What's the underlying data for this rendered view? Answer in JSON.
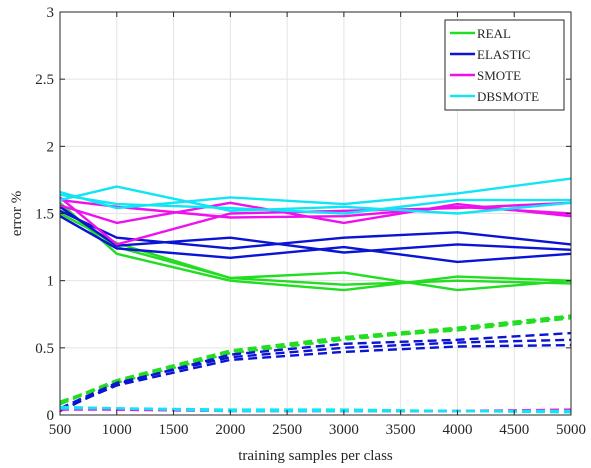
{
  "chart_data": {
    "type": "line",
    "title": "",
    "xlabel": "training samples per class",
    "ylabel": "error %",
    "xlim": [
      500,
      5000
    ],
    "ylim": [
      0,
      3
    ],
    "xticks": [
      500,
      1000,
      1500,
      2000,
      2500,
      3000,
      3500,
      4000,
      4500,
      5000
    ],
    "xtick_labels": [
      "500",
      "1000",
      "1500",
      "2000",
      "2500",
      "3000",
      "3500",
      "4000",
      "4500",
      "5000"
    ],
    "yticks": [
      0,
      0.5,
      1,
      1.5,
      2,
      2.5,
      3
    ],
    "ytick_labels": [
      "0",
      "0.5",
      "1",
      "1.5",
      "2",
      "2.5",
      "3"
    ],
    "grid": true,
    "legend_position": "top-right",
    "x": [
      500,
      1000,
      2000,
      3000,
      4000,
      5000
    ],
    "series": [
      {
        "name": "REAL",
        "color": "#22dd22",
        "style": "solid",
        "values": [
          1.58,
          1.2,
          1.0,
          0.93,
          1.03,
          1.0
        ],
        "legend": true
      },
      {
        "name": "REAL",
        "color": "#22dd22",
        "style": "solid",
        "values": [
          1.55,
          1.25,
          1.02,
          0.97,
          1.0,
          0.98
        ]
      },
      {
        "name": "REAL",
        "color": "#22dd22",
        "style": "solid",
        "values": [
          1.5,
          1.28,
          1.02,
          1.06,
          0.93,
          1.0
        ]
      },
      {
        "name": "ELASTIC",
        "color": "#0a14d2",
        "style": "solid",
        "values": [
          1.52,
          1.32,
          1.24,
          1.32,
          1.36,
          1.27
        ],
        "legend": true
      },
      {
        "name": "ELASTIC",
        "color": "#0a14d2",
        "style": "solid",
        "values": [
          1.55,
          1.26,
          1.32,
          1.21,
          1.27,
          1.23
        ]
      },
      {
        "name": "ELASTIC",
        "color": "#0a14d2",
        "style": "solid",
        "values": [
          1.48,
          1.24,
          1.17,
          1.25,
          1.14,
          1.2
        ]
      },
      {
        "name": "SMOTE",
        "color": "#ee11ee",
        "style": "solid",
        "values": [
          1.56,
          1.43,
          1.58,
          1.43,
          1.57,
          1.48
        ],
        "legend": true
      },
      {
        "name": "SMOTE",
        "color": "#ee11ee",
        "style": "solid",
        "values": [
          1.6,
          1.55,
          1.47,
          1.48,
          1.55,
          1.5
        ]
      },
      {
        "name": "SMOTE",
        "color": "#ee11ee",
        "style": "solid",
        "values": [
          1.62,
          1.27,
          1.5,
          1.52,
          1.54,
          1.58
        ]
      },
      {
        "name": "DBSMOTE",
        "color": "#11e5f5",
        "style": "solid",
        "values": [
          1.66,
          1.54,
          1.62,
          1.57,
          1.65,
          1.76
        ],
        "legend": true
      },
      {
        "name": "DBSMOTE",
        "color": "#11e5f5",
        "style": "solid",
        "values": [
          1.6,
          1.7,
          1.52,
          1.55,
          1.5,
          1.58
        ]
      },
      {
        "name": "DBSMOTE",
        "color": "#11e5f5",
        "style": "solid",
        "values": [
          1.64,
          1.57,
          1.54,
          1.5,
          1.6,
          1.6
        ]
      },
      {
        "name": "REAL",
        "color": "#22dd22",
        "style": "dashed",
        "values": [
          0.09,
          0.26,
          0.48,
          0.58,
          0.65,
          0.74
        ]
      },
      {
        "name": "REAL",
        "color": "#22dd22",
        "style": "dashed",
        "values": [
          0.08,
          0.25,
          0.47,
          0.57,
          0.63,
          0.72
        ]
      },
      {
        "name": "REAL",
        "color": "#22dd22",
        "style": "dashed",
        "values": [
          0.1,
          0.24,
          0.46,
          0.56,
          0.64,
          0.73
        ]
      },
      {
        "name": "ELASTIC",
        "color": "#0a14d2",
        "style": "dashed",
        "values": [
          0.04,
          0.22,
          0.41,
          0.47,
          0.51,
          0.52
        ]
      },
      {
        "name": "ELASTIC",
        "color": "#0a14d2",
        "style": "dashed",
        "values": [
          0.05,
          0.24,
          0.43,
          0.5,
          0.54,
          0.56
        ]
      },
      {
        "name": "ELASTIC",
        "color": "#0a14d2",
        "style": "dashed",
        "values": [
          0.03,
          0.23,
          0.45,
          0.53,
          0.56,
          0.61
        ]
      },
      {
        "name": "SMOTE",
        "color": "#ee11ee",
        "style": "dashed",
        "values": [
          0.05,
          0.04,
          0.03,
          0.03,
          0.03,
          0.04
        ]
      },
      {
        "name": "SMOTE",
        "color": "#ee11ee",
        "style": "dashed",
        "values": [
          0.04,
          0.04,
          0.03,
          0.03,
          0.03,
          0.03
        ]
      },
      {
        "name": "DBSMOTE",
        "color": "#11e5f5",
        "style": "dashed",
        "values": [
          0.06,
          0.05,
          0.04,
          0.04,
          0.03,
          0.02
        ]
      },
      {
        "name": "DBSMOTE",
        "color": "#11e5f5",
        "style": "dashed",
        "values": [
          0.05,
          0.05,
          0.03,
          0.03,
          0.03,
          0.03
        ]
      }
    ]
  }
}
